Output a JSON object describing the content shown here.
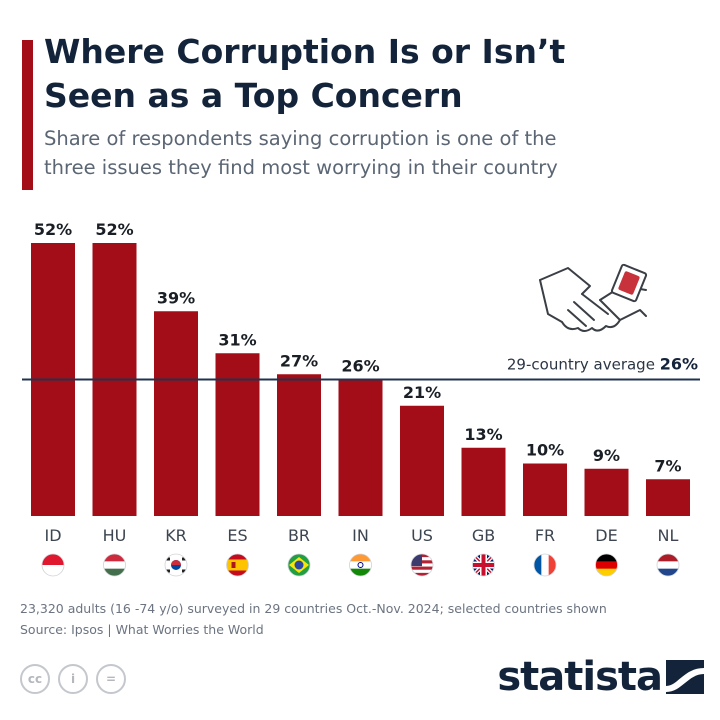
{
  "header": {
    "title_line1": "Where Corruption Is or Isn’t",
    "title_line2": "Seen as a Top Concern",
    "subtitle_line1": "Share of respondents saying corruption is one of the",
    "subtitle_line2": "three issues they find most worrying in their country"
  },
  "colors": {
    "bar": "#a30d17",
    "accent": "#a30d17",
    "text": "#13233a",
    "reference_line": "#1f3350"
  },
  "chart_data": {
    "type": "bar",
    "title": "Where Corruption Is or Isn’t Seen as a Top Concern",
    "subtitle": "Share of respondents saying corruption is one of the three issues they find most worrying in their country",
    "categories": [
      "ID",
      "HU",
      "KR",
      "ES",
      "BR",
      "IN",
      "US",
      "GB",
      "FR",
      "DE",
      "NL"
    ],
    "values": [
      52,
      52,
      39,
      31,
      27,
      26,
      21,
      13,
      10,
      9,
      7
    ],
    "data_labels": [
      "52%",
      "52%",
      "39%",
      "31%",
      "27%",
      "26%",
      "21%",
      "13%",
      "10%",
      "9%",
      "7%"
    ],
    "flags": [
      "flag-indonesia-icon",
      "flag-hungary-icon",
      "flag-south-korea-icon",
      "flag-spain-icon",
      "flag-brazil-icon",
      "flag-india-icon",
      "flag-usa-icon",
      "flag-uk-icon",
      "flag-france-icon",
      "flag-germany-icon",
      "flag-netherlands-icon"
    ],
    "unit": "%",
    "ylim": [
      0,
      55
    ],
    "grid": false,
    "reference_line": {
      "label": "29-country average",
      "value": 26,
      "value_label": "26%"
    }
  },
  "footer": {
    "note": "23,320 adults (16 -74 y/o) surveyed in 29 countries Oct.-Nov. 2024; selected countries shown",
    "source": "Source: Ipsos | What Worries the World",
    "license_icons": [
      "cc",
      "i",
      "="
    ],
    "brand": "statista"
  }
}
